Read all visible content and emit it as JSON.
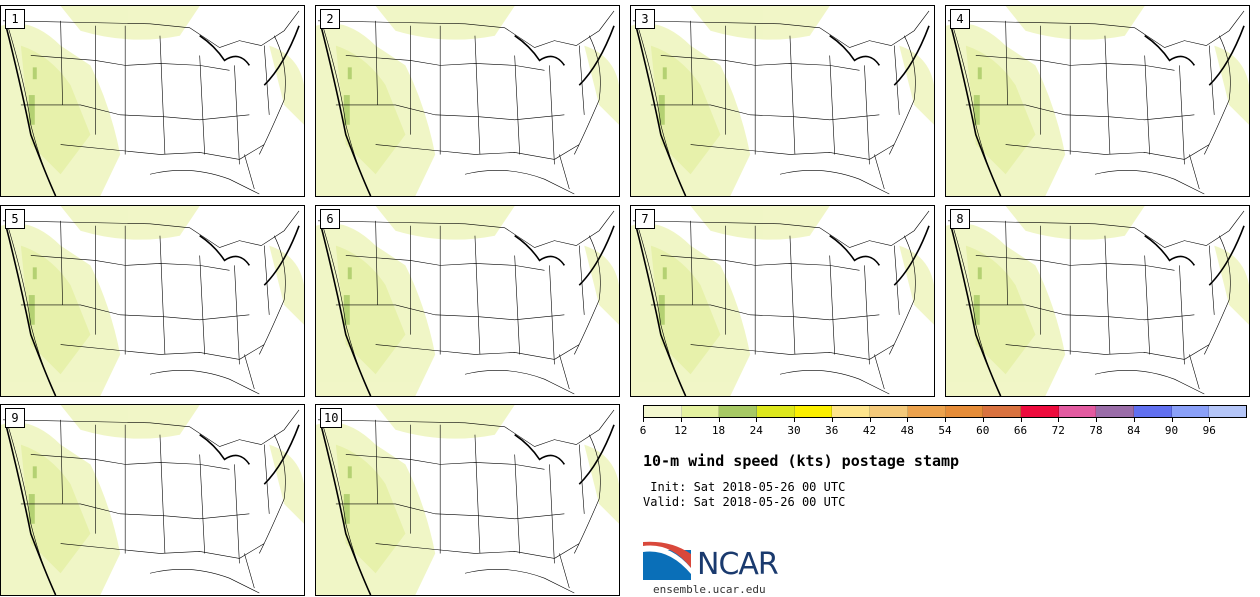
{
  "panels": [
    "1",
    "2",
    "3",
    "4",
    "5",
    "6",
    "7",
    "8",
    "9",
    "10"
  ],
  "legend": {
    "colors": [
      "#f3f7cf",
      "#e4f1a0",
      "#a7c964",
      "#dde71d",
      "#fbef00",
      "#fde48c",
      "#f4c97a",
      "#eca24d",
      "#e58c38",
      "#d9723f",
      "#ed0b3d",
      "#e25aa0",
      "#9a6ca8",
      "#6170f0",
      "#8aa0f8",
      "#b5c6f8"
    ],
    "tick_labels": [
      "6",
      "12",
      "18",
      "24",
      "30",
      "36",
      "42",
      "48",
      "54",
      "60",
      "66",
      "72",
      "78",
      "84",
      "90",
      "96"
    ]
  },
  "title": "10-m wind speed (kts) postage stamp",
  "init_text": " Init: Sat 2018-05-26 00 UTC",
  "valid_text": "Valid: Sat 2018-05-26 00 UTC",
  "logo_text": "NCAR",
  "site": "ensemble.ucar.edu"
}
